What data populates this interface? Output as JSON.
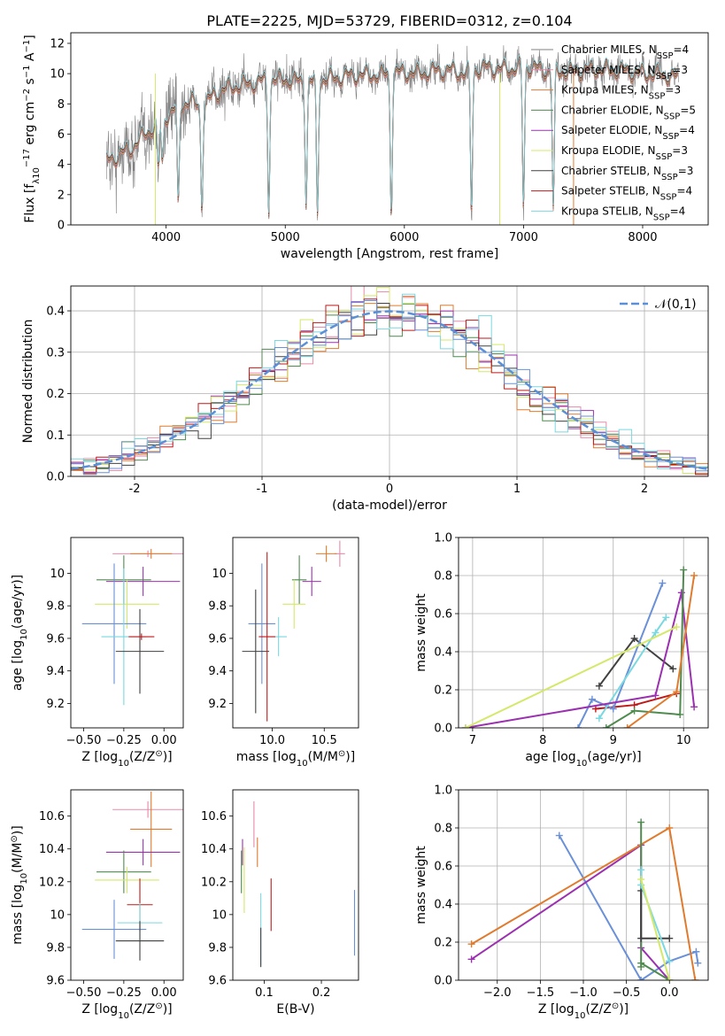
{
  "figure": {
    "title": "PLATE=2225, MJD=53729, FIBERID=0312, z=0.104"
  },
  "models": [
    {
      "name": "Chabrier MILES, N_SSP=4",
      "base": "Chabrier MILES, N",
      "sub": "SSP",
      "tail": "=4",
      "color": "#808080"
    },
    {
      "name": "Salpeter MILES, N_SSP=3",
      "base": "Salpeter MILES, N",
      "sub": "SSP",
      "tail": "=3",
      "color": "#e88aa8"
    },
    {
      "name": "Kroupa MILES, N_SSP=3",
      "base": "Kroupa MILES, N",
      "sub": "SSP",
      "tail": "=3",
      "color": "#e07b2e"
    },
    {
      "name": "Chabrier ELODIE, N_SSP=5",
      "base": "Chabrier ELODIE, N",
      "sub": "SSP",
      "tail": "=5",
      "color": "#4f8a4f"
    },
    {
      "name": "Salpeter ELODIE, N_SSP=4",
      "base": "Salpeter ELODIE, N",
      "sub": "SSP",
      "tail": "=4",
      "color": "#9b30b0"
    },
    {
      "name": "Kroupa ELODIE, N_SSP=3",
      "base": "Kroupa ELODIE, N",
      "sub": "SSP",
      "tail": "=3",
      "color": "#d4e86a"
    },
    {
      "name": "Chabrier STELIB, N_SSP=3",
      "base": "Chabrier STELIB, N",
      "sub": "SSP",
      "tail": "=3",
      "color": "#404040"
    },
    {
      "name": "Salpeter STELIB, N_SSP=4",
      "base": "Salpeter STELIB, N",
      "sub": "SSP",
      "tail": "=4",
      "color": "#c01818"
    },
    {
      "name": "Kroupa STELIB, N_SSP=4",
      "base": "Kroupa STELIB, N",
      "sub": "SSP",
      "tail": "=4",
      "color": "#7ad8e0"
    },
    {
      "name": "",
      "color": "#6a90d8"
    }
  ],
  "chart_data": [
    {
      "id": "spectrum",
      "type": "line",
      "xlabel": "wavelength [Angstrom, rest frame]",
      "ylabel_parts": [
        "Flux [f",
        "λ",
        "10",
        "−17",
        " erg cm",
        "−2",
        " s",
        "−1",
        " A",
        "−1",
        "]"
      ],
      "xlim": [
        3200,
        8550
      ],
      "ylim": [
        0,
        12.7
      ],
      "xticks": [
        4000,
        5000,
        6000,
        7000,
        8000
      ],
      "yticks": [
        0,
        2,
        4,
        6,
        8,
        10,
        12
      ],
      "legend_position": "right",
      "data_range": [
        3500,
        8300
      ],
      "observed_color": "#808080",
      "continuum": [
        [
          3500,
          4.2
        ],
        [
          3600,
          4.6
        ],
        [
          3700,
          5.0
        ],
        [
          3800,
          5.8
        ],
        [
          3900,
          6.5
        ],
        [
          4000,
          7.2
        ],
        [
          4100,
          7.8
        ],
        [
          4200,
          8.2
        ],
        [
          4300,
          7.7
        ],
        [
          4400,
          8.6
        ],
        [
          4500,
          9.0
        ],
        [
          4600,
          9.2
        ],
        [
          4700,
          9.3
        ],
        [
          4800,
          9.5
        ],
        [
          4900,
          9.6
        ],
        [
          5000,
          9.6
        ],
        [
          5100,
          9.5
        ],
        [
          5200,
          9.4
        ],
        [
          5300,
          9.6
        ],
        [
          5400,
          9.7
        ],
        [
          5500,
          9.8
        ],
        [
          5600,
          9.9
        ],
        [
          5700,
          9.9
        ],
        [
          5800,
          9.9
        ],
        [
          5900,
          10.0
        ],
        [
          6000,
          10.1
        ],
        [
          6100,
          10.0
        ],
        [
          6200,
          10.1
        ],
        [
          6300,
          10.2
        ],
        [
          6400,
          10.2
        ],
        [
          6500,
          10.0
        ],
        [
          6600,
          10.3
        ],
        [
          6700,
          10.4
        ],
        [
          6800,
          10.3
        ],
        [
          6900,
          10.3
        ],
        [
          7000,
          10.5
        ],
        [
          7200,
          10.2
        ],
        [
          7400,
          10.1
        ],
        [
          7600,
          10.3
        ],
        [
          7800,
          10.2
        ],
        [
          8000,
          10.0
        ],
        [
          8200,
          9.9
        ],
        [
          8300,
          9.7
        ]
      ],
      "dips": [
        [
          3934,
          3.2
        ],
        [
          3969,
          3.0
        ],
        [
          4102,
          6.8
        ],
        [
          4300,
          6.5
        ],
        [
          4861,
          8.5
        ],
        [
          5175,
          7.8
        ],
        [
          5270,
          9.0
        ],
        [
          5890,
          8.9
        ],
        [
          6563,
          9.6
        ],
        [
          7000,
          9.4
        ],
        [
          7250,
          9.3
        ]
      ],
      "spikes": [
        [
          3910,
          "#d4e86a"
        ],
        [
          6800,
          "#d4e86a"
        ],
        [
          7420,
          "#e07b2e"
        ]
      ]
    },
    {
      "id": "residuals",
      "type": "histogram",
      "xlabel": "(data-model)/error",
      "ylabel": "Normed distribution",
      "xlim": [
        -2.5,
        2.5
      ],
      "ylim": [
        0,
        0.46
      ],
      "xticks": [
        -2,
        -1,
        0,
        1,
        2
      ],
      "yticks": [
        0.0,
        0.1,
        0.2,
        0.3,
        0.4
      ],
      "bins": 50,
      "legend": "𝒩(0,1)",
      "legend_position": "top-right",
      "gauss_color": "#5b8fd6",
      "grid": true
    },
    {
      "id": "age-vs-Z",
      "type": "errorbar",
      "xlabel_parts": [
        "Z [log",
        "10",
        "(Z/Z",
        "⊙",
        ")]"
      ],
      "ylabel_parts": [
        "age  [log",
        "10",
        "(age/yr)]"
      ],
      "xlim": [
        -0.58,
        0.12
      ],
      "ylim": [
        9.05,
        10.22
      ],
      "xticks": [
        -0.5,
        -0.25,
        0.0
      ],
      "xticklabels": [
        "−0.50",
        "−0.25",
        "0.00"
      ],
      "yticks": [
        9.2,
        9.4,
        9.6,
        9.8,
        10.0
      ],
      "points": [
        {
          "c": 4,
          "x": -0.13,
          "y": 9.95,
          "xe": 0.23,
          "ye": 0.09
        },
        {
          "c": 3,
          "x": -0.25,
          "y": 9.96,
          "xe": 0.17,
          "ye": 0.15
        },
        {
          "c": 1,
          "x": -0.1,
          "y": 10.12,
          "xe": 0.22,
          "ye": 0.02
        },
        {
          "c": 2,
          "x": -0.08,
          "y": 10.12,
          "xe": 0.13,
          "ye": 0.03
        },
        {
          "c": 5,
          "x": -0.23,
          "y": 9.81,
          "xe": 0.2,
          "ye": 0.15
        },
        {
          "c": 9,
          "x": -0.31,
          "y": 9.69,
          "xe": 0.2,
          "ye": 0.37
        },
        {
          "c": 8,
          "x": -0.25,
          "y": 9.61,
          "xe": 0.14,
          "ye": 0.42
        },
        {
          "c": 6,
          "x": -0.15,
          "y": 9.52,
          "xe": 0.15,
          "ye": 0.26
        },
        {
          "c": 7,
          "x": -0.14,
          "y": 9.61,
          "xe": 0.08,
          "ye": 0.02
        }
      ]
    },
    {
      "id": "age-vs-mass",
      "type": "errorbar",
      "xlabel_parts": [
        "mass [log",
        "10",
        "(M/M",
        "⊙",
        ")]"
      ],
      "xlim": [
        9.62,
        10.83
      ],
      "ylim": [
        9.05,
        10.22
      ],
      "xticks": [
        10.0,
        10.5
      ],
      "xticklabels": [
        "10.0",
        "10.5"
      ],
      "yticks": [
        9.2,
        9.4,
        9.6,
        9.8,
        10.0
      ],
      "points": [
        {
          "c": 4,
          "x": 10.38,
          "y": 9.95,
          "xe": 0.09,
          "ye": 0.09
        },
        {
          "c": 3,
          "x": 10.26,
          "y": 9.96,
          "xe": 0.07,
          "ye": 0.15
        },
        {
          "c": 1,
          "x": 10.65,
          "y": 10.12,
          "xe": 0.05,
          "ye": 0.08
        },
        {
          "c": 2,
          "x": 10.52,
          "y": 10.12,
          "xe": 0.1,
          "ye": 0.05
        },
        {
          "c": 5,
          "x": 10.21,
          "y": 9.81,
          "xe": 0.11,
          "ye": 0.15
        },
        {
          "c": 9,
          "x": 9.9,
          "y": 9.69,
          "xe": 0.13,
          "ye": 0.37
        },
        {
          "c": 8,
          "x": 10.06,
          "y": 9.61,
          "xe": 0.08,
          "ye": 0.12
        },
        {
          "c": 6,
          "x": 9.84,
          "y": 9.52,
          "xe": 0.13,
          "ye": 0.38
        },
        {
          "c": 7,
          "x": 9.95,
          "y": 9.61,
          "xe": 0.08,
          "ye": 0.52
        }
      ]
    },
    {
      "id": "massweight-vs-age",
      "type": "line",
      "xlabel_parts": [
        "age  [log",
        "10",
        "(age/yr)]"
      ],
      "ylabel": "mass weight",
      "xlim": [
        6.8,
        10.35
      ],
      "ylim": [
        0,
        1.0
      ],
      "xticks": [
        7,
        8,
        9,
        10
      ],
      "yticks": [
        0.0,
        0.2,
        0.4,
        0.6,
        0.8,
        1.0
      ],
      "grid": true,
      "series": [
        {
          "c": 6,
          "points": [
            [
              8.8,
              0.22
            ],
            [
              9.3,
              0.47
            ],
            [
              9.85,
              0.31
            ]
          ]
        },
        {
          "c": 7,
          "points": [
            [
              8.75,
              0.1
            ],
            [
              9.3,
              0.12
            ],
            [
              9.9,
              0.18
            ]
          ]
        },
        {
          "c": 9,
          "points": [
            [
              8.5,
              0.0
            ],
            [
              8.7,
              0.15
            ],
            [
              9.0,
              0.1
            ],
            [
              9.7,
              0.76
            ]
          ]
        },
        {
          "c": 8,
          "points": [
            [
              8.8,
              0.05
            ],
            [
              9.6,
              0.5
            ],
            [
              9.75,
              0.58
            ]
          ]
        },
        {
          "c": 4,
          "points": [
            [
              6.9,
              0.0
            ],
            [
              9.6,
              0.17
            ],
            [
              9.97,
              0.71
            ],
            [
              10.15,
              0.11
            ]
          ]
        },
        {
          "c": 3,
          "points": [
            [
              8.9,
              0.0
            ],
            [
              9.3,
              0.09
            ],
            [
              9.95,
              0.07
            ],
            [
              10.0,
              0.83
            ]
          ]
        },
        {
          "c": 5,
          "points": [
            [
              6.9,
              0.0
            ],
            [
              9.9,
              0.53
            ]
          ]
        },
        {
          "c": 2,
          "points": [
            [
              9.2,
              0.0
            ],
            [
              9.9,
              0.19
            ],
            [
              10.15,
              0.8
            ]
          ]
        }
      ]
    },
    {
      "id": "mass-vs-Z",
      "type": "errorbar",
      "xlabel_parts": [
        "Z [log",
        "10",
        "(Z/Z",
        "⊙",
        ")]"
      ],
      "ylabel_parts": [
        "mass [log",
        "10",
        "(M/M",
        "⊙",
        ")]"
      ],
      "xlim": [
        -0.58,
        0.12
      ],
      "ylim": [
        9.6,
        10.76
      ],
      "xticks": [
        -0.5,
        -0.25,
        0.0
      ],
      "xticklabels": [
        "−0.50",
        "−0.25",
        "0.00"
      ],
      "yticks": [
        9.6,
        9.8,
        10.0,
        10.2,
        10.4,
        10.6
      ],
      "points": [
        {
          "c": 1,
          "x": -0.1,
          "y": 10.64,
          "xe": 0.22,
          "ye": 0.05
        },
        {
          "c": 2,
          "x": -0.08,
          "y": 10.52,
          "xe": 0.13,
          "ye": 0.23
        },
        {
          "c": 4,
          "x": -0.13,
          "y": 10.38,
          "xe": 0.23,
          "ye": 0.08
        },
        {
          "c": 3,
          "x": -0.25,
          "y": 10.26,
          "xe": 0.17,
          "ye": 0.13
        },
        {
          "c": 5,
          "x": -0.23,
          "y": 10.21,
          "xe": 0.2,
          "ye": 0.08
        },
        {
          "c": 7,
          "x": -0.15,
          "y": 10.06,
          "xe": 0.08,
          "ye": 0.16
        },
        {
          "c": 8,
          "x": -0.15,
          "y": 9.95,
          "xe": 0.14,
          "ye": 0.12
        },
        {
          "c": 9,
          "x": -0.31,
          "y": 9.91,
          "xe": 0.2,
          "ye": 0.18
        },
        {
          "c": 6,
          "x": -0.15,
          "y": 9.84,
          "xe": 0.15,
          "ye": 0.12
        }
      ]
    },
    {
      "id": "mass-vs-EBV",
      "type": "errorbar",
      "xlabel": "E(B-V)",
      "xlim": [
        0.045,
        0.265
      ],
      "ylim": [
        9.6,
        10.76
      ],
      "xticks": [
        0.1,
        0.2
      ],
      "xticklabels": [
        "0.1",
        "0.2"
      ],
      "yticks": [
        9.6,
        9.8,
        10.0,
        10.2,
        10.4,
        10.6
      ],
      "points": [
        {
          "c": 1,
          "x": 0.082,
          "y": 10.55,
          "xe": 0,
          "ye": 0.14
        },
        {
          "c": 2,
          "x": 0.088,
          "y": 10.38,
          "xe": 0,
          "ye": 0.09
        },
        {
          "c": 4,
          "x": 0.062,
          "y": 10.38,
          "xe": 0,
          "ye": 0.08
        },
        {
          "c": 3,
          "x": 0.06,
          "y": 10.26,
          "xe": 0,
          "ye": 0.13
        },
        {
          "c": 5,
          "x": 0.065,
          "y": 10.21,
          "xe": 0,
          "ye": 0.2
        },
        {
          "c": 7,
          "x": 0.112,
          "y": 10.06,
          "xe": 0,
          "ye": 0.16
        },
        {
          "c": 9,
          "x": 0.258,
          "y": 9.95,
          "xe": 0,
          "ye": 0.2
        },
        {
          "c": 8,
          "x": 0.094,
          "y": 9.91,
          "xe": 0,
          "ye": 0.22
        },
        {
          "c": 6,
          "x": 0.094,
          "y": 9.8,
          "xe": 0,
          "ye": 0.12
        }
      ]
    },
    {
      "id": "massweight-vs-Z",
      "type": "line",
      "xlabel_parts": [
        "Z [log",
        "10",
        "(Z/Z",
        "⊙",
        ")]"
      ],
      "ylabel": "mass weight",
      "xlim": [
        -2.45,
        0.45
      ],
      "ylim": [
        0,
        1.0
      ],
      "xticks": [
        -2.0,
        -1.5,
        -1.0,
        -0.5,
        0.0
      ],
      "xticklabels": [
        "−2.0",
        "−1.5",
        "−1.0",
        "−0.5",
        "0.0"
      ],
      "yticks": [
        0.0,
        0.2,
        0.4,
        0.6,
        0.8,
        1.0
      ],
      "grid": true,
      "series": [
        {
          "c": 9,
          "points": [
            [
              -1.28,
              0.76
            ],
            [
              -0.33,
              0.0
            ],
            [
              0.0,
              0.1
            ],
            [
              0.31,
              0.15
            ],
            [
              0.33,
              0.09
            ]
          ]
        },
        {
          "c": 4,
          "points": [
            [
              -2.3,
              0.11
            ],
            [
              -0.33,
              0.71
            ],
            [
              -0.33,
              0.17
            ],
            [
              0.0,
              0.0
            ]
          ]
        },
        {
          "c": 2,
          "points": [
            [
              -2.3,
              0.19
            ],
            [
              0.0,
              0.8
            ],
            [
              0.3,
              0.0
            ]
          ]
        },
        {
          "c": 3,
          "points": [
            [
              -0.33,
              0.83
            ],
            [
              -0.33,
              0.07
            ],
            [
              -0.33,
              0.09
            ],
            [
              0.0,
              0.0
            ]
          ]
        },
        {
          "c": 6,
          "points": [
            [
              -0.33,
              0.47
            ],
            [
              -0.33,
              0.22
            ],
            [
              0.0,
              0.22
            ]
          ]
        },
        {
          "c": 8,
          "points": [
            [
              -0.33,
              0.58
            ],
            [
              -0.33,
              0.5
            ],
            [
              0.0,
              0.1
            ]
          ]
        },
        {
          "c": 5,
          "points": [
            [
              -0.33,
              0.53
            ],
            [
              0.0,
              0.0
            ]
          ]
        }
      ]
    }
  ]
}
